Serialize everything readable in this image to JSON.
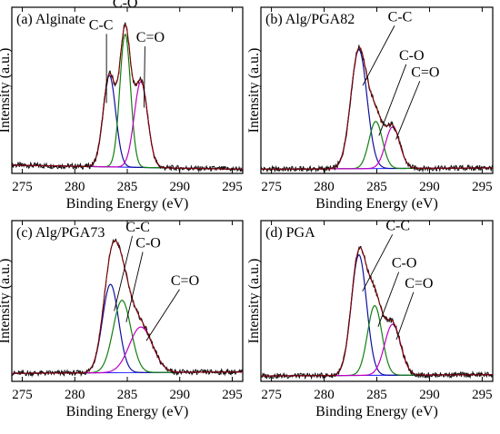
{
  "chart_data": [
    {
      "type": "line",
      "title": "(a) Alginate",
      "xlabel": "Binding Energy (eV)",
      "ylabel": "Intensity (a.u.)",
      "xlim": [
        274,
        296
      ],
      "xticks": [
        275,
        280,
        285,
        290,
        295
      ],
      "ylim": [
        0,
        1.2
      ],
      "baseline": [
        0.06,
        0.03
      ],
      "envelope_color": "#8b0000",
      "raw_color": "#111111",
      "series": [
        {
          "name": "C-C",
          "center": 283.3,
          "fwhm": 1.4,
          "height": 0.66,
          "color": "#1010a0"
        },
        {
          "name": "C-O",
          "center": 284.8,
          "fwhm": 1.2,
          "height": 0.96,
          "color": "#108010"
        },
        {
          "name": "C=O",
          "center": 286.3,
          "fwhm": 1.5,
          "height": 0.62,
          "color": "#c000c0"
        }
      ],
      "labels": [
        {
          "text": "C-C",
          "x": 282.5,
          "y": 1.04,
          "peak": 0
        },
        {
          "text": "C-O",
          "x": 284.8,
          "y": 1.2,
          "peak": null
        },
        {
          "text": "C=O",
          "x": 287.2,
          "y": 0.95,
          "peak": 2
        }
      ]
    },
    {
      "type": "line",
      "title": "(b) Alg/PGA82",
      "xlabel": "Binding Energy (eV)",
      "ylabel": "Intensity (a.u.)",
      "xlim": [
        274,
        296
      ],
      "xticks": [
        275,
        280,
        285,
        290,
        295
      ],
      "ylim": [
        0,
        1.2
      ],
      "baseline": [
        0.03,
        0.04
      ],
      "envelope_color": "#8b0000",
      "raw_color": "#111111",
      "series": [
        {
          "name": "C-C",
          "center": 283.3,
          "fwhm": 1.8,
          "height": 0.86,
          "color": "#1010a0"
        },
        {
          "name": "C-O",
          "center": 284.9,
          "fwhm": 1.5,
          "height": 0.34,
          "color": "#108010"
        },
        {
          "name": "C=O",
          "center": 286.5,
          "fwhm": 1.6,
          "height": 0.3,
          "color": "#c000c0"
        }
      ],
      "labels": [
        {
          "text": "C-C",
          "x": 287.2,
          "y": 1.1,
          "peak": 0
        },
        {
          "text": "C-O",
          "x": 288.3,
          "y": 0.82,
          "peak": 1
        },
        {
          "text": "C=O",
          "x": 289.6,
          "y": 0.7,
          "peak": 2
        }
      ]
    },
    {
      "type": "line",
      "title": "(c) Alg/PGA73",
      "xlabel": "Binding Energy (eV)",
      "ylabel": "Intensity (a.u.)",
      "xlim": [
        274,
        296
      ],
      "xticks": [
        275,
        280,
        285,
        290,
        295
      ],
      "ylim": [
        0,
        1.2
      ],
      "baseline": [
        0.06,
        0.07
      ],
      "envelope_color": "#8b0000",
      "raw_color": "#111111",
      "series": [
        {
          "name": "C-C",
          "center": 283.4,
          "fwhm": 1.8,
          "height": 0.66,
          "color": "#1010a0"
        },
        {
          "name": "C-O",
          "center": 284.5,
          "fwhm": 2.0,
          "height": 0.54,
          "color": "#108010"
        },
        {
          "name": "C=O",
          "center": 286.3,
          "fwhm": 2.6,
          "height": 0.34,
          "color": "#c000c0"
        }
      ],
      "labels": [
        {
          "text": "C-C",
          "x": 286.0,
          "y": 1.12,
          "peak": 0
        },
        {
          "text": "C-O",
          "x": 287.0,
          "y": 1.0,
          "peak": 1
        },
        {
          "text": "C=O",
          "x": 290.5,
          "y": 0.72,
          "peak": 2
        }
      ]
    },
    {
      "type": "line",
      "title": "(d) PGA",
      "xlabel": "Binding Energy (eV)",
      "ylabel": "Intensity (a.u.)",
      "xlim": [
        274,
        296
      ],
      "xticks": [
        275,
        280,
        285,
        290,
        295
      ],
      "ylim": [
        0,
        1.2
      ],
      "baseline": [
        0.04,
        0.05
      ],
      "envelope_color": "#8b0000",
      "raw_color": "#111111",
      "series": [
        {
          "name": "C-C",
          "center": 283.3,
          "fwhm": 1.7,
          "height": 0.9,
          "color": "#1010a0"
        },
        {
          "name": "C-O",
          "center": 284.8,
          "fwhm": 1.6,
          "height": 0.52,
          "color": "#108010"
        },
        {
          "name": "C=O",
          "center": 286.5,
          "fwhm": 1.8,
          "height": 0.38,
          "color": "#c000c0"
        }
      ],
      "labels": [
        {
          "text": "C-C",
          "x": 287.0,
          "y": 1.13,
          "peak": 0
        },
        {
          "text": "C-O",
          "x": 287.6,
          "y": 0.85,
          "peak": 1
        },
        {
          "text": "C=O",
          "x": 289.0,
          "y": 0.7,
          "peak": 2
        }
      ]
    }
  ]
}
